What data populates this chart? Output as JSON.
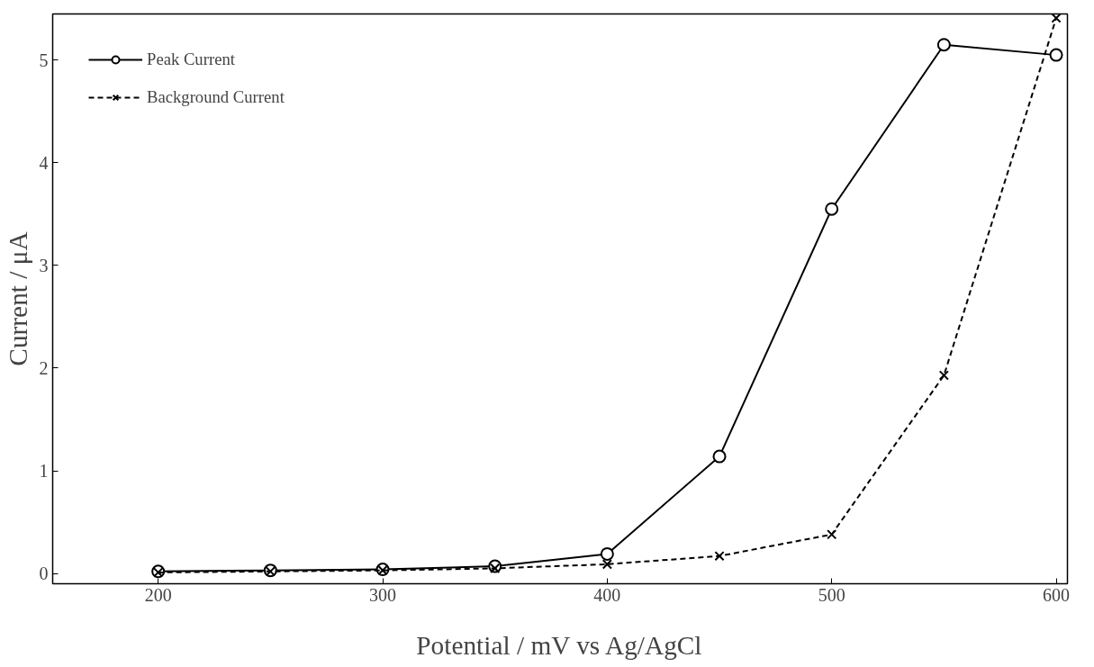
{
  "chart_data": {
    "type": "line",
    "xlabel": "Potential / mV vs Ag/AgCl",
    "ylabel": "Current / μA",
    "x": [
      200,
      250,
      300,
      350,
      400,
      450,
      500,
      550,
      600
    ],
    "series": [
      {
        "name": "Peak Current",
        "color": "#000000",
        "marker": "circle",
        "line_style": "solid",
        "values": [
          0.02,
          0.03,
          0.04,
          0.07,
          0.19,
          1.14,
          3.55,
          5.15,
          5.05
        ]
      },
      {
        "name": "Background Current",
        "color": "#000000",
        "marker": "cross",
        "line_style": "dashed",
        "values": [
          0.01,
          0.02,
          0.03,
          0.05,
          0.09,
          0.17,
          0.38,
          1.93,
          5.41
        ]
      }
    ],
    "xlim": [
      153,
      605
    ],
    "ylim": [
      -0.1,
      5.45
    ],
    "xticks": [
      200,
      300,
      400,
      500,
      600
    ],
    "yticks": [
      0,
      1,
      2,
      3,
      4,
      5
    ],
    "grid": false,
    "legend": "top left"
  }
}
